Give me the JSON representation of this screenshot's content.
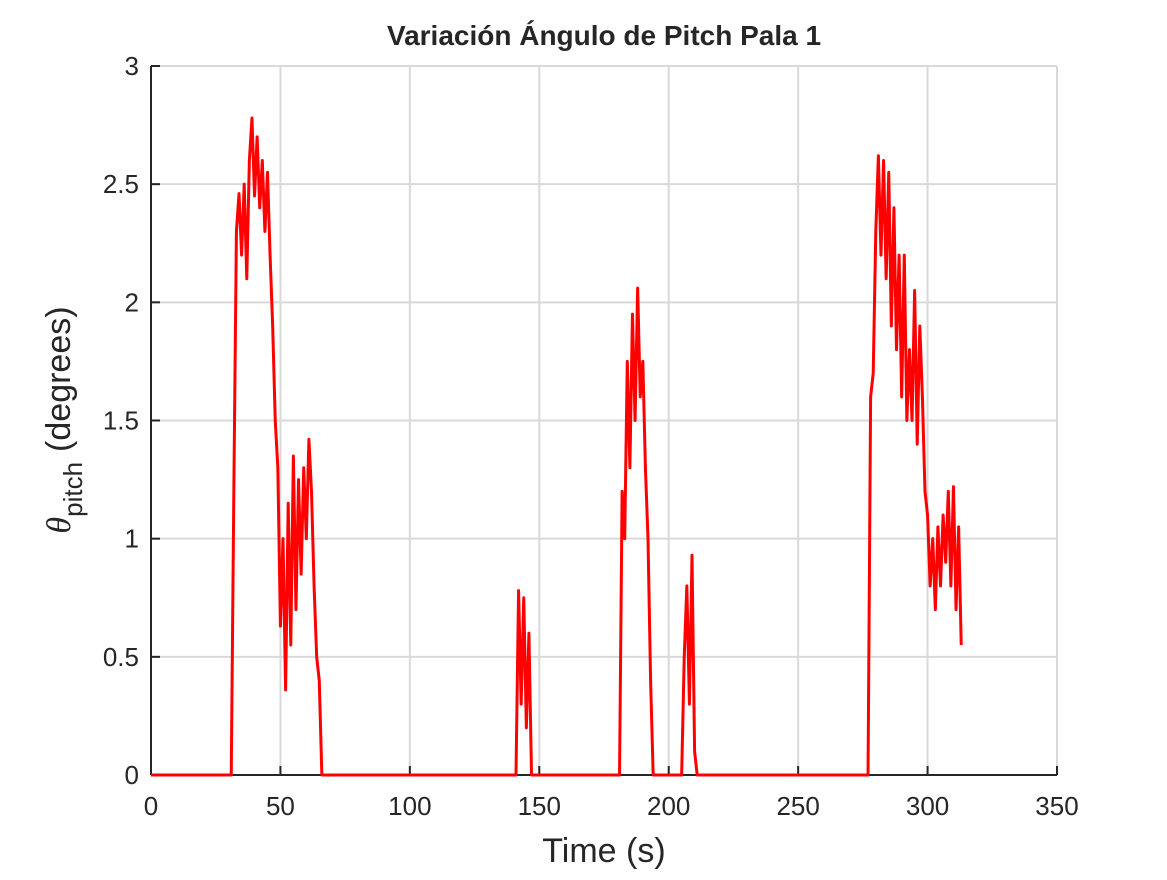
{
  "chart_data": {
    "type": "line",
    "title": "Variación Ángulo de Pitch Pala 1",
    "xlabel": "Time (s)",
    "ylabel": {
      "symbol": "θ",
      "subscript": "pitch",
      "text": "(degrees)"
    },
    "xlim": [
      0,
      350
    ],
    "xticks": [
      0,
      50,
      100,
      150,
      200,
      250,
      300,
      350
    ],
    "ylim": [
      0,
      3
    ],
    "yticks": [
      0,
      0.5,
      1,
      1.5,
      2,
      2.5,
      3
    ],
    "grid": true,
    "series": [
      {
        "color": "#ff0000",
        "x": [
          0,
          31,
          32,
          33,
          34,
          35,
          36,
          37,
          38,
          39,
          40,
          41,
          42,
          43,
          44,
          45,
          46,
          47,
          48,
          49,
          50,
          51,
          52,
          53,
          54,
          55,
          56,
          57,
          58,
          59,
          60,
          61,
          62,
          63,
          64,
          65,
          66,
          141,
          142,
          143,
          144,
          145,
          146,
          147,
          181,
          182,
          183,
          184,
          185,
          186,
          187,
          188,
          189,
          190,
          191,
          192,
          193,
          194,
          205,
          206,
          207,
          208,
          209,
          210,
          211,
          277,
          278,
          279,
          280,
          281,
          282,
          283,
          284,
          285,
          286,
          287,
          288,
          289,
          290,
          291,
          292,
          293,
          294,
          295,
          296,
          297,
          298,
          299,
          300,
          301,
          302,
          303,
          304,
          305,
          306,
          307,
          308,
          309,
          310,
          311,
          312,
          313
        ],
        "values": [
          0,
          0,
          1.2,
          2.3,
          2.46,
          2.2,
          2.5,
          2.1,
          2.6,
          2.78,
          2.45,
          2.7,
          2.4,
          2.6,
          2.3,
          2.55,
          2.2,
          1.9,
          1.5,
          1.3,
          0.63,
          1.0,
          0.36,
          1.15,
          0.55,
          1.35,
          0.7,
          1.25,
          0.85,
          1.3,
          1.0,
          1.42,
          1.2,
          0.8,
          0.5,
          0.4,
          0,
          0,
          0.78,
          0.3,
          0.75,
          0.2,
          0.6,
          0,
          0,
          1.2,
          1.0,
          1.75,
          1.3,
          1.95,
          1.5,
          2.06,
          1.6,
          1.75,
          1.3,
          1.0,
          0.4,
          0,
          0,
          0.5,
          0.8,
          0.3,
          0.93,
          0.1,
          0,
          0,
          1.6,
          1.7,
          2.3,
          2.62,
          2.2,
          2.6,
          2.1,
          2.55,
          1.9,
          2.4,
          1.8,
          2.2,
          1.6,
          2.2,
          1.5,
          1.8,
          1.5,
          2.05,
          1.4,
          1.9,
          1.6,
          1.2,
          1.1,
          0.8,
          1.0,
          0.7,
          1.05,
          0.8,
          1.1,
          0.9,
          1.2,
          0.8,
          1.22,
          0.7,
          1.05,
          0.55
        ]
      }
    ]
  }
}
